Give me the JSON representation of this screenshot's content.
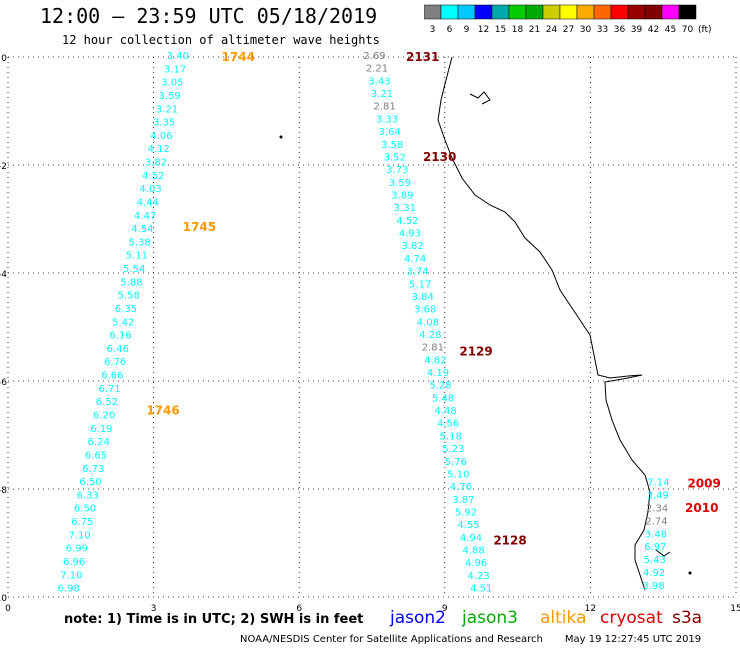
{
  "header": {
    "title": "12:00 – 23:59 UTC 05/18/2019",
    "subtitle": "12 hour collection of altimeter wave heights"
  },
  "legend_scale": {
    "labels": [
      "3",
      "6",
      "9",
      "12",
      "15",
      "18",
      "21",
      "24",
      "27",
      "30",
      "33",
      "36",
      "39",
      "42",
      "45",
      "70"
    ],
    "unit": "(ft)",
    "colors": [
      "#7f7f7f",
      "#00ffff",
      "#00c8ff",
      "#0000ff",
      "#00aaaa",
      "#00cc00",
      "#00aa00",
      "#cccc00",
      "#ffff00",
      "#ffaa00",
      "#ff6600",
      "#ff0000",
      "#990000",
      "#800000",
      "#ff00ff",
      "#000000"
    ]
  },
  "footer": {
    "note": "note:  1) Time is in UTC;  2) SWH is in feet",
    "credit_left": "NOAA/NESDIS Center for Satellite Applications and Research",
    "credit_right": "May 19 12:27:45 UTC 2019"
  },
  "satellites": [
    {
      "name": "jason2",
      "color": "#0000ff"
    },
    {
      "name": "jason3",
      "color": "#00aa00"
    },
    {
      "name": "altika",
      "color": "#ff9900"
    },
    {
      "name": "cryosat",
      "color": "#dd0000"
    },
    {
      "name": "s3a",
      "color": "#800000"
    }
  ],
  "chart_data": {
    "type": "map",
    "xlim": [
      0,
      15
    ],
    "ylim": [
      -10,
      0
    ],
    "x_ticks": [
      "0",
      "3",
      "6",
      "9",
      "12",
      "15"
    ],
    "y_ticks": [
      "0",
      "-2",
      "-4",
      "-6",
      "-8",
      "-10"
    ],
    "grid": true,
    "tracks": [
      {
        "satellite": "altika",
        "times": [
          {
            "label": "1744",
            "x": 4.4,
            "y": 0.0
          },
          {
            "label": "1745",
            "x": 3.6,
            "y": -3.15
          },
          {
            "label": "1746",
            "x": 2.85,
            "y": -6.55
          }
        ],
        "values": [
          "3.40",
          "3.17",
          "3.05",
          "3.59",
          "3.21",
          "3.35",
          "4.06",
          "4.12",
          "3.82",
          "4.52",
          "4.03",
          "4.44",
          "4.47",
          "4.54",
          "5.38",
          "5.11",
          "5.54",
          "5.88",
          "5.58",
          "6.35",
          "5.42",
          "6.16",
          "6.46",
          "6.76",
          "6.66",
          "6.71",
          "6.52",
          "6.20",
          "6.19",
          "6.24",
          "6.65",
          "6.73",
          "6.50",
          "6.33",
          "6.50",
          "6.75",
          "7.10",
          "6.99",
          "6.96",
          "7.10",
          "6.98"
        ],
        "top": [
          3.5,
          0.0
        ],
        "bottom": [
          1.25,
          -9.9
        ]
      },
      {
        "satellite": "s3a",
        "times": [
          {
            "label": "2131",
            "x": 8.2,
            "y": 0.0
          },
          {
            "label": "2130",
            "x": 8.55,
            "y": -1.85
          },
          {
            "label": "2129",
            "x": 9.3,
            "y": -5.45
          },
          {
            "label": "2128",
            "x": 10.0,
            "y": -8.95
          }
        ],
        "values": [
          "2.69",
          "2.21",
          "3.43",
          "3.21",
          "2.81",
          "3.33",
          "3.64",
          "3.58",
          "3.52",
          "3.73",
          "3.59",
          "3.89",
          "3.31",
          "4.52",
          "4.93",
          "3.82",
          "4.74",
          "3.74",
          "5.17",
          "3.84",
          "3.68",
          "4.08",
          "4.28",
          "2.81",
          "4.82",
          "4.19",
          "5.28",
          "5.48",
          "4.48",
          "4.56",
          "5.18",
          "5.23",
          "5.76",
          "5.10",
          "4.76",
          "3.87",
          "5.92",
          "4.55",
          "4.94",
          "4.88",
          "4.96",
          "4.23",
          "4.51"
        ],
        "top": [
          7.55,
          0.0
        ],
        "bottom": [
          9.75,
          -9.9
        ]
      },
      {
        "satellite": "cryosat",
        "times": [
          {
            "label": "2009",
            "x": 14.0,
            "y": -7.9
          },
          {
            "label": "2010",
            "x": 13.95,
            "y": -8.35
          }
        ],
        "values": [
          "7.14",
          "3.49",
          "2.34",
          "2.74",
          "3.48",
          "6.97",
          "5.43",
          "4.92",
          "3.98"
        ],
        "top": [
          13.4,
          -7.9
        ],
        "bottom": [
          13.3,
          -9.85
        ]
      }
    ]
  }
}
